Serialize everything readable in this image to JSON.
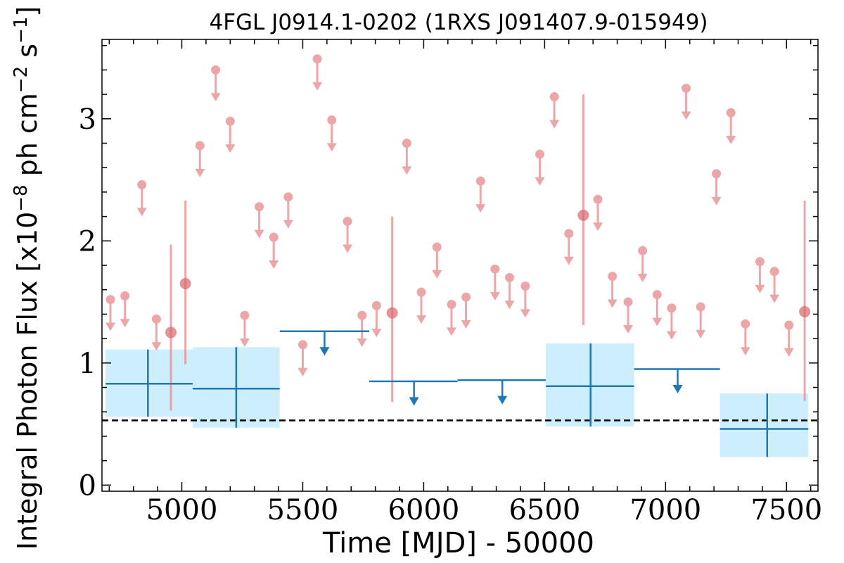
{
  "chart_data": {
    "type": "scatter",
    "title": "4FGL J0914.1-0202 (1RXS J091407.9-015949)",
    "xlabel": "Time [MJD] - 50000",
    "ylabel": {
      "prefix": "Integral Photon Flux [x10",
      "exp1": "−8",
      "mid": " ph cm",
      "exp2": "−2",
      "mid2": " s",
      "exp3": "−1",
      "suffix": "]"
    },
    "xlim": [
      4670,
      7630
    ],
    "ylim": [
      -0.05,
      3.65
    ],
    "xticks": [
      {
        "value": 5000,
        "label": "5000"
      },
      {
        "value": 5500,
        "label": "5500"
      },
      {
        "value": 6000,
        "label": "6000"
      },
      {
        "value": 6500,
        "label": "6500"
      },
      {
        "value": 7000,
        "label": "7000"
      },
      {
        "value": 7500,
        "label": "7500"
      }
    ],
    "yticks": [
      {
        "value": 0,
        "label": "0"
      },
      {
        "value": 1,
        "label": "1"
      },
      {
        "value": 2,
        "label": "2"
      },
      {
        "value": 3,
        "label": "3"
      }
    ],
    "reference_line": {
      "y": 0.53,
      "style": "dashed",
      "color": "#000000"
    },
    "colors": {
      "fine": "#e8898c",
      "fine_detection": "#d9666a",
      "coarse": "#1f77b4",
      "coarse_box": "#cdeefc"
    },
    "fine_upper_limits": [
      {
        "x": 4705,
        "y": 1.52
      },
      {
        "x": 4765,
        "y": 1.55
      },
      {
        "x": 4835,
        "y": 2.46
      },
      {
        "x": 4895,
        "y": 1.36
      },
      {
        "x": 5075,
        "y": 2.78
      },
      {
        "x": 5140,
        "y": 3.4
      },
      {
        "x": 5200,
        "y": 2.98
      },
      {
        "x": 5260,
        "y": 1.39
      },
      {
        "x": 5320,
        "y": 2.28
      },
      {
        "x": 5380,
        "y": 2.03
      },
      {
        "x": 5440,
        "y": 2.36
      },
      {
        "x": 5500,
        "y": 1.15
      },
      {
        "x": 5560,
        "y": 3.49
      },
      {
        "x": 5620,
        "y": 2.99
      },
      {
        "x": 5685,
        "y": 2.16
      },
      {
        "x": 5745,
        "y": 1.39
      },
      {
        "x": 5805,
        "y": 1.47
      },
      {
        "x": 5930,
        "y": 2.8
      },
      {
        "x": 5990,
        "y": 1.58
      },
      {
        "x": 6055,
        "y": 1.95
      },
      {
        "x": 6115,
        "y": 1.48
      },
      {
        "x": 6175,
        "y": 1.54
      },
      {
        "x": 6235,
        "y": 2.49
      },
      {
        "x": 6295,
        "y": 1.77
      },
      {
        "x": 6355,
        "y": 1.7
      },
      {
        "x": 6420,
        "y": 1.63
      },
      {
        "x": 6480,
        "y": 2.71
      },
      {
        "x": 6540,
        "y": 3.18
      },
      {
        "x": 6600,
        "y": 2.06
      },
      {
        "x": 6720,
        "y": 2.34
      },
      {
        "x": 6780,
        "y": 1.71
      },
      {
        "x": 6845,
        "y": 1.5
      },
      {
        "x": 6905,
        "y": 1.92
      },
      {
        "x": 6965,
        "y": 1.56
      },
      {
        "x": 7025,
        "y": 1.45
      },
      {
        "x": 7085,
        "y": 3.25
      },
      {
        "x": 7145,
        "y": 1.46
      },
      {
        "x": 7210,
        "y": 2.55
      },
      {
        "x": 7270,
        "y": 3.05
      },
      {
        "x": 7330,
        "y": 1.32
      },
      {
        "x": 7390,
        "y": 1.83
      },
      {
        "x": 7450,
        "y": 1.75
      },
      {
        "x": 7510,
        "y": 1.31
      }
    ],
    "fine_detections": [
      {
        "x": 4955,
        "y": 1.25,
        "ylo": 0.61,
        "yhi": 1.97
      },
      {
        "x": 5015,
        "y": 1.65,
        "ylo": 0.99,
        "yhi": 2.33
      },
      {
        "x": 5870,
        "y": 1.41,
        "ylo": 0.68,
        "yhi": 2.2
      },
      {
        "x": 6660,
        "y": 2.21,
        "ylo": 1.31,
        "yhi": 3.2
      },
      {
        "x": 7575,
        "y": 1.42,
        "ylo": 0.69,
        "yhi": 2.33
      }
    ],
    "coarse_detections": [
      {
        "x": 4860,
        "x0": 4685,
        "x1": 5045,
        "y": 0.83,
        "ylo": 0.56,
        "yhi": 1.11
      },
      {
        "x": 5225,
        "x0": 5045,
        "x1": 5405,
        "y": 0.79,
        "ylo": 0.47,
        "yhi": 1.13
      },
      {
        "x": 6690,
        "x0": 6505,
        "x1": 6870,
        "y": 0.81,
        "ylo": 0.48,
        "yhi": 1.16
      },
      {
        "x": 7420,
        "x0": 7225,
        "x1": 7590,
        "y": 0.46,
        "ylo": 0.23,
        "yhi": 0.75
      }
    ],
    "coarse_upper_limits": [
      {
        "x": 5590,
        "x0": 5405,
        "x1": 5775,
        "y": 1.26
      },
      {
        "x": 5960,
        "x0": 5775,
        "x1": 6140,
        "y": 0.85
      },
      {
        "x": 6325,
        "x0": 6140,
        "x1": 6505,
        "y": 0.86
      },
      {
        "x": 7050,
        "x0": 6870,
        "x1": 7225,
        "y": 0.95
      }
    ]
  }
}
